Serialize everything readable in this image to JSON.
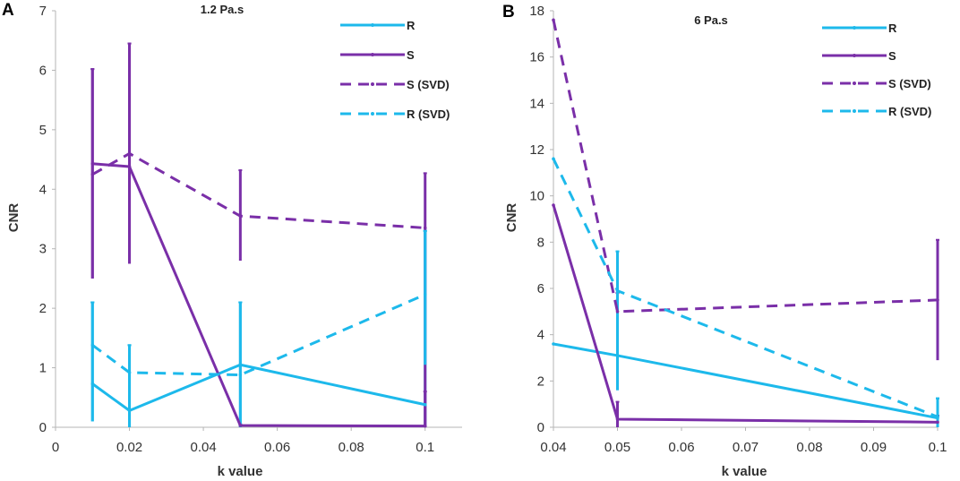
{
  "colors": {
    "R": "#1db9eb",
    "S": "#7a2fa8",
    "axis": "#b5b5b5",
    "error": "#ffffff"
  },
  "chart_data": [
    {
      "panel": "A",
      "type": "line",
      "title": "1.2 Pa.s",
      "xlabel": "k value",
      "ylabel": "CNR",
      "xlim": [
        0,
        0.11
      ],
      "ylim": [
        0,
        7
      ],
      "xticks": [
        0,
        0.02,
        0.04,
        0.06,
        0.08,
        0.1
      ],
      "xtick_labels": [
        "0",
        "0.02",
        "0.04",
        "0.06",
        "0.08",
        "0.1"
      ],
      "yticks": [
        0,
        1,
        2,
        3,
        4,
        5,
        6,
        7
      ],
      "ytick_labels": [
        "0",
        "1",
        "2",
        "3",
        "4",
        "5",
        "6",
        "7"
      ],
      "legend": [
        "R",
        "S",
        "S (SVD)",
        "R (SVD)"
      ],
      "series": [
        {
          "name": "R",
          "color": "R",
          "dashed": false,
          "x": [
            0.01,
            0.02,
            0.05,
            0.1
          ],
          "y": [
            0.73,
            0.28,
            1.05,
            0.38
          ],
          "err_low": [
            0.1,
            0.0,
            0.0,
            0.0
          ],
          "err_high": [
            2.1,
            1.38,
            2.1,
            3.3
          ]
        },
        {
          "name": "S",
          "color": "S",
          "dashed": false,
          "x": [
            0.01,
            0.02,
            0.05,
            0.1
          ],
          "y": [
            4.43,
            4.38,
            0.03,
            0.02
          ],
          "err_low": [
            2.5,
            2.75,
            0.0,
            0.0
          ],
          "err_high": [
            6.02,
            6.45,
            0.05,
            0.6
          ]
        },
        {
          "name": "S (SVD)",
          "color": "S",
          "dashed": true,
          "x": [
            0.01,
            0.02,
            0.05,
            0.1
          ],
          "y": [
            4.25,
            4.6,
            3.55,
            3.35
          ],
          "err_low": [
            2.5,
            2.75,
            2.8,
            0.0
          ],
          "err_high": [
            6.02,
            6.45,
            4.32,
            4.27
          ]
        },
        {
          "name": "R (SVD)",
          "color": "R",
          "dashed": true,
          "x": [
            0.01,
            0.02,
            0.05,
            0.1
          ],
          "y": [
            1.38,
            0.92,
            0.88,
            2.23
          ],
          "err_low": [
            0.1,
            0.0,
            0.0,
            1.05
          ],
          "err_high": [
            2.1,
            1.38,
            2.1,
            3.3
          ]
        }
      ]
    },
    {
      "panel": "B",
      "type": "line",
      "title": "6 Pa.s",
      "xlabel": "k value",
      "ylabel": "CNR",
      "xlim": [
        0.04,
        0.1
      ],
      "ylim": [
        0,
        18
      ],
      "xticks": [
        0.04,
        0.05,
        0.06,
        0.07,
        0.08,
        0.09,
        0.1
      ],
      "xtick_labels": [
        "0.04",
        "0.05",
        "0.06",
        "0.07",
        "0.08",
        "0.09",
        "0.1"
      ],
      "yticks": [
        0,
        2,
        4,
        6,
        8,
        10,
        12,
        14,
        16,
        18
      ],
      "ytick_labels": [
        "0",
        "2",
        "4",
        "6",
        "8",
        "10",
        "12",
        "14",
        "16",
        "18"
      ],
      "legend": [
        "R",
        "S",
        "S (SVD)",
        "R (SVD)"
      ],
      "series": [
        {
          "name": "R",
          "color": "R",
          "dashed": false,
          "x": [
            0.04,
            0.05,
            0.1
          ],
          "y": [
            3.6,
            3.1,
            0.4
          ],
          "err_low": [
            null,
            1.6,
            0.0
          ],
          "err_high": [
            null,
            7.6,
            1.25
          ]
        },
        {
          "name": "S",
          "color": "S",
          "dashed": false,
          "x": [
            0.04,
            0.05,
            0.1
          ],
          "y": [
            9.6,
            0.35,
            0.22
          ],
          "err_low": [
            null,
            0.0,
            0.0
          ],
          "err_high": [
            null,
            1.1,
            0.5
          ]
        },
        {
          "name": "S (SVD)",
          "color": "S",
          "dashed": true,
          "x": [
            0.04,
            0.05,
            0.1
          ],
          "y": [
            17.6,
            5.0,
            5.5
          ],
          "err_low": [
            null,
            4.3,
            2.9
          ],
          "err_high": [
            null,
            5.8,
            8.1
          ]
        },
        {
          "name": "R (SVD)",
          "color": "R",
          "dashed": true,
          "x": [
            0.04,
            0.05,
            0.1
          ],
          "y": [
            11.6,
            5.9,
            0.45
          ],
          "err_low": [
            null,
            1.6,
            0.0
          ],
          "err_high": [
            null,
            7.6,
            1.25
          ]
        }
      ]
    }
  ]
}
